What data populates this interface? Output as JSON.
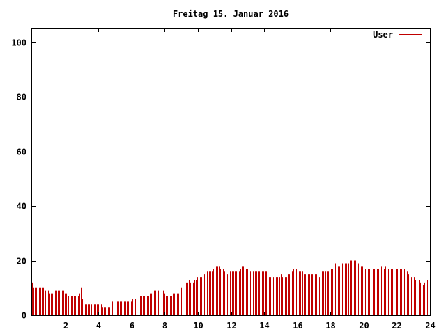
{
  "chart_data": {
    "type": "bar",
    "title": "Freitag 15. Januar 2016",
    "xlabel": "",
    "ylabel": "",
    "xlim": [
      0,
      24
    ],
    "ylim": [
      0,
      105
    ],
    "xticks": [
      2,
      4,
      6,
      8,
      10,
      12,
      14,
      16,
      18,
      20,
      22,
      24
    ],
    "yticks": [
      0,
      20,
      40,
      60,
      80,
      100
    ],
    "grid": false,
    "legend_position": "top-right",
    "series": [
      {
        "name": "User",
        "color": "#c00000",
        "step_hours": 0.0833,
        "values": [
          12,
          10,
          10,
          10,
          10,
          10,
          10,
          10,
          10,
          9,
          9,
          9,
          8,
          8,
          8,
          8,
          9,
          9,
          9,
          9,
          9,
          9,
          9,
          8,
          8,
          7,
          7,
          7,
          7,
          7,
          7,
          7,
          7,
          8,
          10,
          6,
          4,
          4,
          4,
          4,
          4,
          4,
          4,
          4,
          4,
          4,
          4,
          4,
          4,
          3,
          3,
          3,
          3,
          3,
          3,
          4,
          5,
          5,
          5,
          5,
          5,
          5,
          5,
          5,
          5,
          5,
          5,
          5,
          5,
          5,
          6,
          6,
          6,
          6,
          7,
          7,
          7,
          7,
          7,
          7,
          7,
          7,
          8,
          8,
          9,
          9,
          9,
          9,
          9,
          10,
          9,
          9,
          8,
          7,
          7,
          7,
          7,
          7,
          8,
          8,
          8,
          8,
          8,
          8,
          10,
          10,
          11,
          12,
          12,
          13,
          12,
          11,
          12,
          13,
          13,
          14,
          13,
          14,
          14,
          15,
          15,
          16,
          16,
          16,
          16,
          16,
          17,
          18,
          18,
          18,
          18,
          17,
          17,
          17,
          16,
          16,
          15,
          15,
          16,
          16,
          16,
          16,
          16,
          16,
          16,
          17,
          18,
          18,
          18,
          17,
          17,
          16,
          16,
          16,
          16,
          16,
          16,
          16,
          16,
          16,
          16,
          16,
          16,
          16,
          16,
          14,
          14,
          14,
          14,
          14,
          14,
          14,
          14,
          15,
          14,
          13,
          14,
          14,
          15,
          15,
          16,
          16,
          17,
          17,
          17,
          17,
          16,
          16,
          16,
          15,
          15,
          15,
          15,
          15,
          15,
          15,
          15,
          15,
          15,
          15,
          14,
          14,
          16,
          16,
          16,
          16,
          16,
          16,
          17,
          17,
          19,
          19,
          19,
          18,
          18,
          19,
          19,
          19,
          19,
          19,
          19,
          20,
          20,
          20,
          20,
          20,
          19,
          19,
          19,
          18,
          18,
          17,
          17,
          17,
          17,
          17,
          18,
          17,
          17,
          17,
          17,
          17,
          17,
          18,
          18,
          17,
          18,
          17,
          17,
          17,
          17,
          17,
          17,
          17,
          17,
          17,
          17,
          17,
          17,
          17,
          16,
          16,
          15,
          14,
          14,
          13,
          14,
          13,
          13,
          13,
          12,
          12,
          11,
          12,
          13,
          13,
          12
        ]
      }
    ]
  }
}
